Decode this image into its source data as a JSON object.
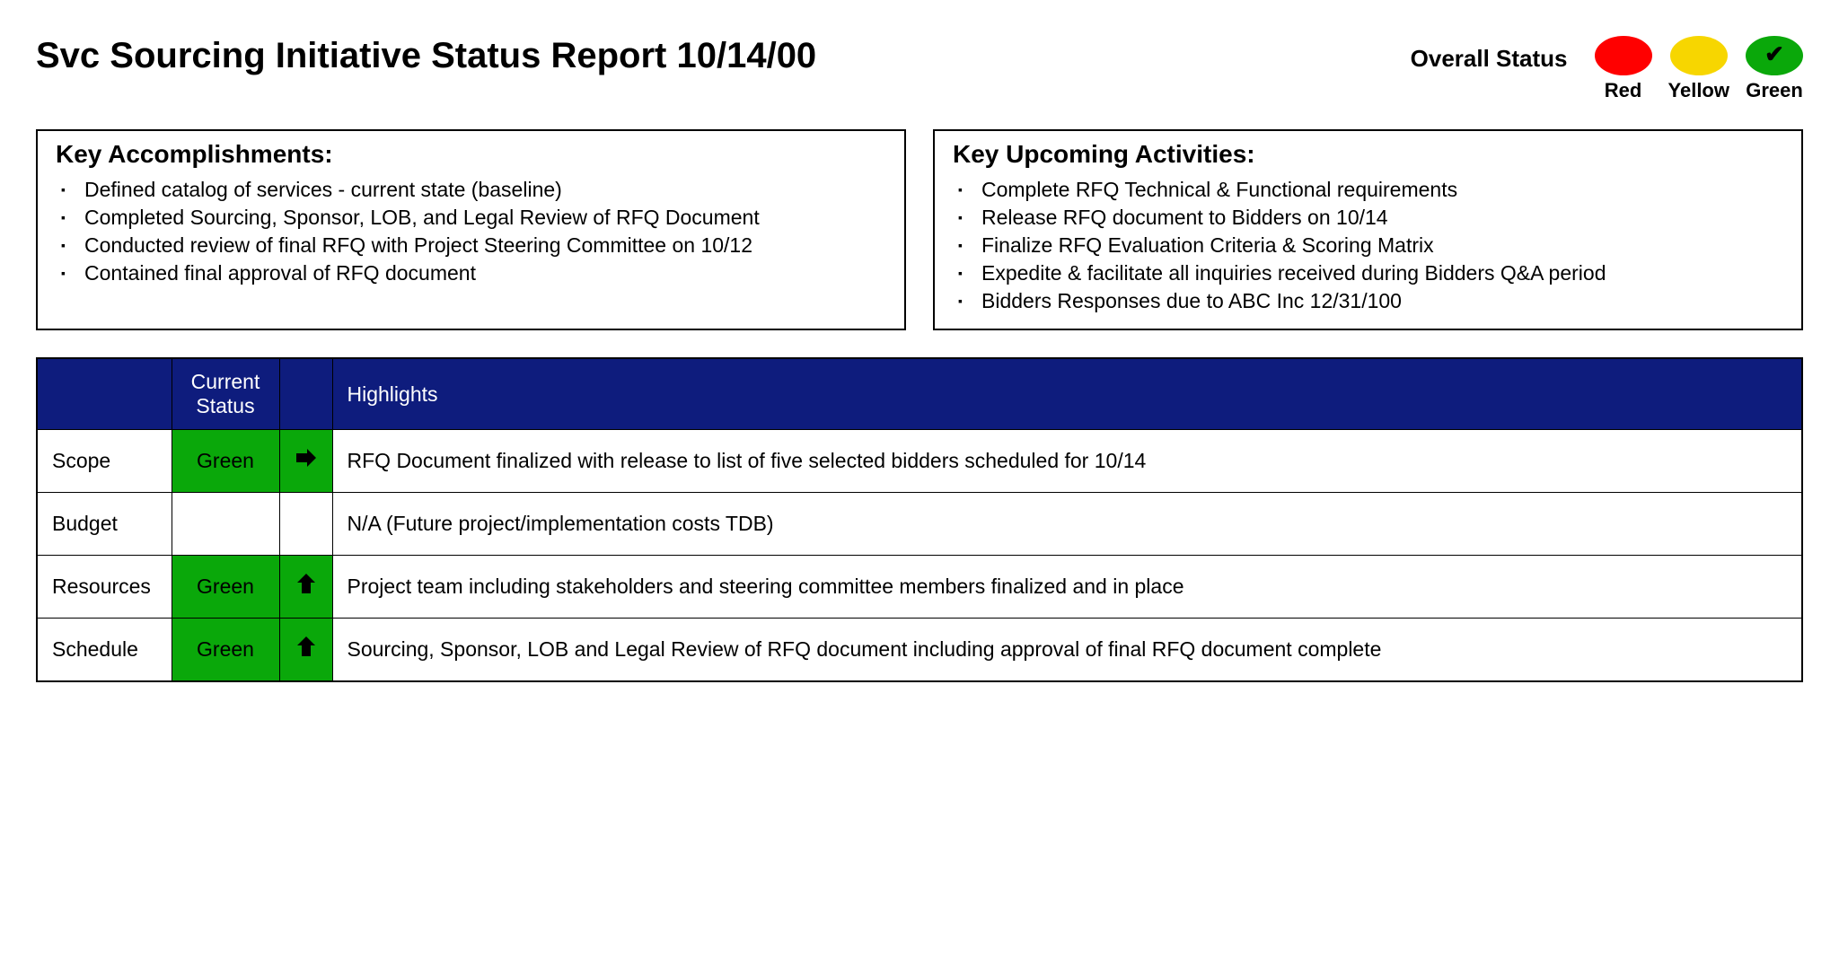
{
  "header": {
    "title": "Svc Sourcing Initiative Status Report 10/14/00",
    "overall_status_label": "Overall Status"
  },
  "legend": {
    "items": [
      {
        "label": "Red",
        "color": "#ff0000",
        "checked": false
      },
      {
        "label": "Yellow",
        "color": "#f7d600",
        "checked": false
      },
      {
        "label": "Green",
        "color": "#0aa80a",
        "checked": true
      }
    ]
  },
  "colors": {
    "table_header_bg": "#0e1c7d",
    "status_green_bg": "#0aa80a",
    "border": "#000000",
    "background": "#ffffff",
    "text": "#000000"
  },
  "accomplishments": {
    "title": "Key Accomplishments:",
    "items": [
      "Defined catalog of services - current state (baseline)",
      "Completed Sourcing, Sponsor, LOB, and Legal Review of RFQ Document",
      "Conducted review of final RFQ with Project Steering Committee on 10/12",
      "Contained final approval of RFQ document"
    ]
  },
  "upcoming": {
    "title": "Key Upcoming Activities:",
    "items": [
      "Complete RFQ Technical & Functional requirements",
      "Release RFQ document to Bidders on 10/14",
      "Finalize RFQ Evaluation Criteria & Scoring Matrix",
      "Expedite & facilitate all inquiries received during Bidders Q&A period",
      "Bidders Responses due to ABC Inc 12/31/100"
    ]
  },
  "status_table": {
    "columns": {
      "category": "",
      "current_status": "Current Status",
      "trend": "",
      "highlights": "Highlights"
    },
    "rows": [
      {
        "category": "Scope",
        "status": "Green",
        "status_color": "#0aa80a",
        "trend": "right",
        "highlight": "RFQ Document finalized with release to list of five selected bidders scheduled for 10/14"
      },
      {
        "category": "Budget",
        "status": "",
        "status_color": "",
        "trend": "",
        "highlight": "N/A (Future project/implementation costs TDB)"
      },
      {
        "category": "Resources",
        "status": "Green",
        "status_color": "#0aa80a",
        "trend": "up",
        "highlight": "Project team including stakeholders and steering committee members finalized and in place"
      },
      {
        "category": "Schedule",
        "status": "Green",
        "status_color": "#0aa80a",
        "trend": "up",
        "highlight": "Sourcing, Sponsor, LOB and Legal Review of RFQ document including approval of final RFQ document complete"
      }
    ]
  },
  "typography": {
    "title_fontsize": 40,
    "box_title_fontsize": 28,
    "body_fontsize": 23,
    "legend_label_fontsize": 22
  }
}
